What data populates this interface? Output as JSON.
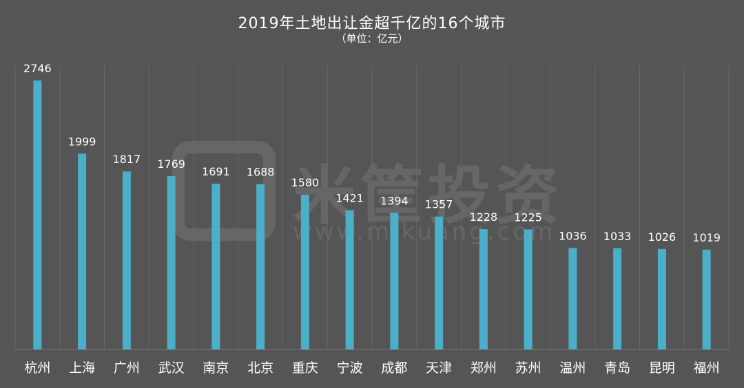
{
  "chart_data": {
    "type": "bar",
    "title": "2019年土地出让金超千亿的16个城市",
    "subtitle": "（单位：亿元）",
    "categories": [
      "杭州",
      "上海",
      "广州",
      "武汉",
      "南京",
      "北京",
      "重庆",
      "宁波",
      "成都",
      "天津",
      "郑州",
      "苏州",
      "温州",
      "青岛",
      "昆明",
      "福州"
    ],
    "values": [
      2746,
      1999,
      1817,
      1769,
      1691,
      1688,
      1580,
      1421,
      1394,
      1357,
      1228,
      1225,
      1036,
      1033,
      1026,
      1019
    ],
    "ylim": [
      0,
      2900
    ],
    "grid": "vertical",
    "data_labels": true,
    "colors": {
      "bar": "#4bafc9",
      "background": "#555555",
      "text": "#ffffff",
      "grid": "#666666"
    }
  },
  "watermark": {
    "brand": "米筐投资",
    "url": "www.mikuang.com"
  }
}
